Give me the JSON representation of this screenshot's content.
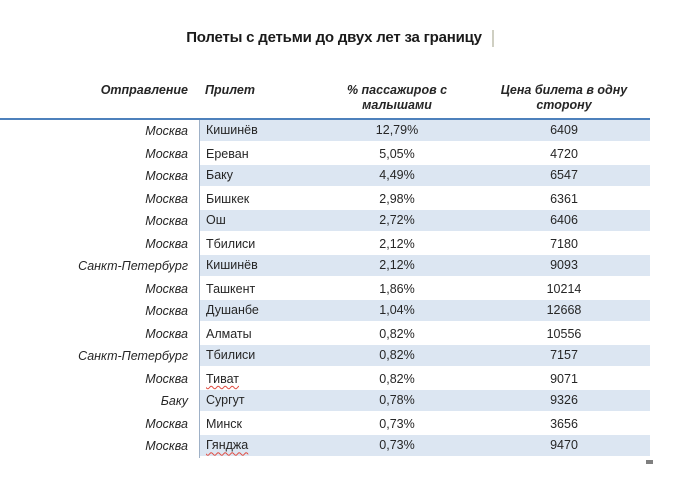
{
  "title": {
    "text": "Полеты с детьми до двух лет за границу"
  },
  "table": {
    "headers": {
      "departure": "Отправление",
      "arrival": "Прилет",
      "percent": "% пассажиров с малышами",
      "price": "Цена билета в одну сторону"
    },
    "rows": [
      {
        "from": "Москва",
        "to": "Кишинёв",
        "percent": "12,79%",
        "price": "6409",
        "misspelled": false
      },
      {
        "from": "Москва",
        "to": "Ереван",
        "percent": "5,05%",
        "price": "4720",
        "misspelled": false
      },
      {
        "from": "Москва",
        "to": "Баку",
        "percent": "4,49%",
        "price": "6547",
        "misspelled": false
      },
      {
        "from": "Москва",
        "to": "Бишкек",
        "percent": "2,98%",
        "price": "6361",
        "misspelled": false
      },
      {
        "from": "Москва",
        "to": "Ош",
        "percent": "2,72%",
        "price": "6406",
        "misspelled": false
      },
      {
        "from": "Москва",
        "to": "Тбилиси",
        "percent": "2,12%",
        "price": "7180",
        "misspelled": false
      },
      {
        "from": "Санкт-Петербург",
        "to": "Кишинёв",
        "percent": "2,12%",
        "price": "9093",
        "misspelled": false
      },
      {
        "from": "Москва",
        "to": "Ташкент",
        "percent": "1,86%",
        "price": "10214",
        "misspelled": false
      },
      {
        "from": "Москва",
        "to": "Душанбе",
        "percent": "1,04%",
        "price": "12668",
        "misspelled": false
      },
      {
        "from": "Москва",
        "to": "Алматы",
        "percent": "0,82%",
        "price": "10556",
        "misspelled": false
      },
      {
        "from": "Санкт-Петербург",
        "to": "Тбилиси",
        "percent": "0,82%",
        "price": "7157",
        "misspelled": false
      },
      {
        "from": "Москва",
        "to": "Тиват",
        "percent": "0,82%",
        "price": "9071",
        "misspelled": true
      },
      {
        "from": "Баку",
        "to": "Сургут",
        "percent": "0,78%",
        "price": "9326",
        "misspelled": false
      },
      {
        "from": "Москва",
        "to": "Минск",
        "percent": "0,73%",
        "price": "3656",
        "misspelled": false
      },
      {
        "from": "Москва",
        "to": "Гянджа",
        "percent": "0,73%",
        "price": "9470",
        "misspelled": true
      }
    ]
  },
  "colors": {
    "row_band": "#DCE6F2",
    "header_rule": "#4E81BC",
    "column_divider": "#9FB1C7",
    "spellcheck_underline": "#E04A3F",
    "text": "#262626"
  }
}
